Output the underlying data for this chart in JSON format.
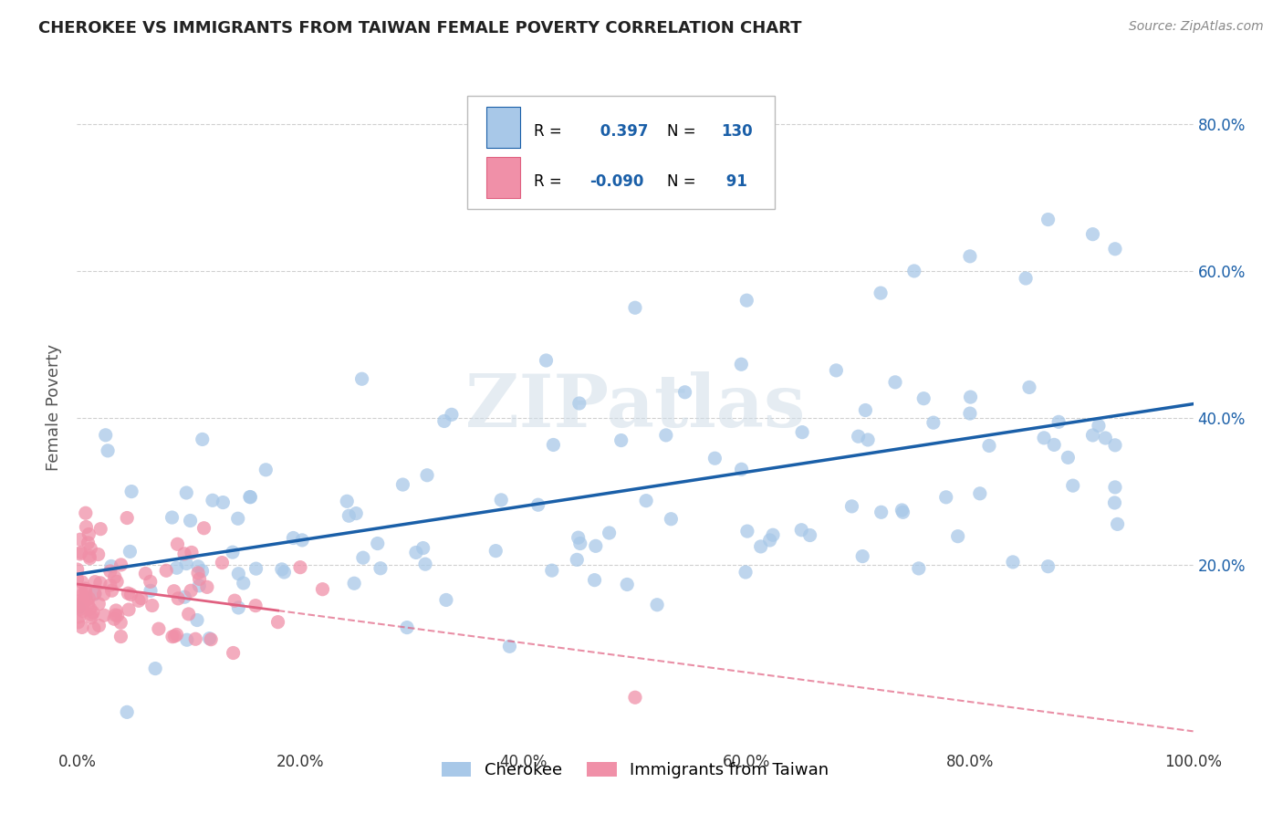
{
  "title": "CHEROKEE VS IMMIGRANTS FROM TAIWAN FEMALE POVERTY CORRELATION CHART",
  "source": "Source: ZipAtlas.com",
  "ylabel": "Female Poverty",
  "xlim": [
    0,
    1.0
  ],
  "ylim": [
    -0.05,
    0.88
  ],
  "xtick_labels": [
    "0.0%",
    "20.0%",
    "40.0%",
    "60.0%",
    "80.0%",
    "100.0%"
  ],
  "xtick_vals": [
    0.0,
    0.2,
    0.4,
    0.6,
    0.8,
    1.0
  ],
  "ytick_labels": [
    "20.0%",
    "40.0%",
    "60.0%",
    "80.0%"
  ],
  "ytick_vals": [
    0.2,
    0.4,
    0.6,
    0.8
  ],
  "cherokee_color": "#a8c8e8",
  "taiwan_color": "#f090a8",
  "cherokee_line_color": "#1a5fa8",
  "taiwan_line_color": "#e06080",
  "legend_cherokee_label": "Cherokee",
  "legend_taiwan_label": "Immigrants from Taiwan",
  "r_cherokee": "0.397",
  "n_cherokee": "130",
  "r_taiwan": "-0.090",
  "n_taiwan": "91",
  "watermark": "ZIPatlas",
  "background_color": "#ffffff",
  "grid_color": "#d0d0d0",
  "title_color": "#222222",
  "axis_color": "#1a5fa8",
  "cherokee_seed": 12345,
  "taiwan_seed": 67890
}
